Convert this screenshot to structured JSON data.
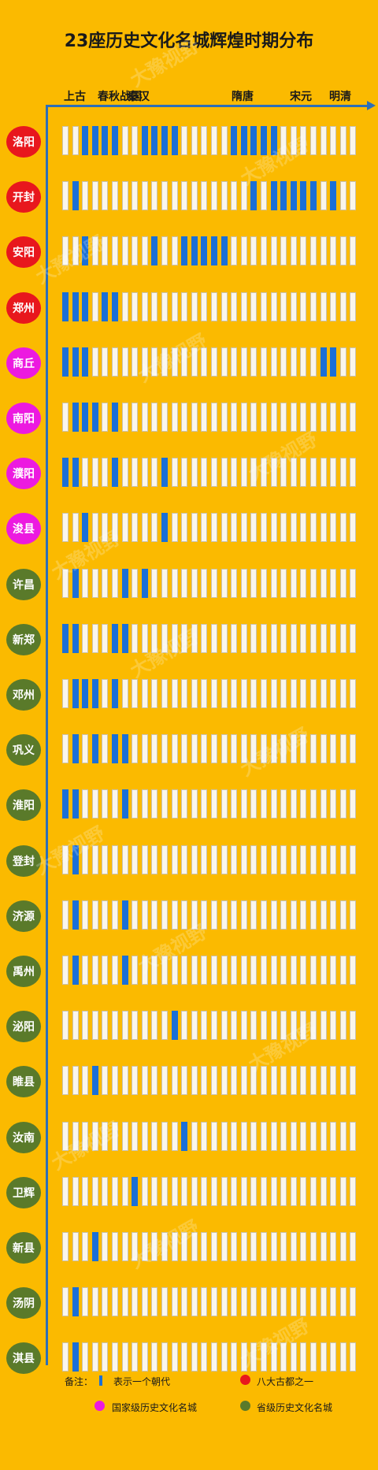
{
  "title": "23座历史文化名城辉煌时期分布",
  "eras": [
    "上古",
    "春秋战国",
    "秦汉",
    "隋唐",
    "宋元",
    "明清"
  ],
  "colors": {
    "background": "#FBBA00",
    "active_cell": "#1B6FD6",
    "empty_cell": "#FAF6EC",
    "axis": "#2d6fb8",
    "ancient_capital": "#E8171D",
    "national_city": "#EC1AE0",
    "provincial_city": "#5A7A2A"
  },
  "legend": {
    "note": "备注：",
    "dynasty": "表示一个朝代",
    "ancient_capital": "八大古都之一",
    "national_city": "国家级历史文化名城",
    "provincial_city": "省级历史文化名城"
  },
  "watermark": "大豫视野",
  "chart_data": {
    "type": "table",
    "title": "23座历史文化名城辉煌时期分布",
    "x_label": "",
    "x_eras": [
      "上古",
      "春秋战国",
      "秦汉",
      "隋唐",
      "宋元",
      "明清"
    ],
    "columns_per_row": 30,
    "cell_meaning": "表示一个朝代",
    "rows": [
      {
        "city": "洛阳",
        "category": "ancient_capital",
        "active": [
          2,
          3,
          4,
          5,
          8,
          9,
          10,
          11,
          17,
          18,
          19,
          20,
          21
        ]
      },
      {
        "city": "开封",
        "category": "ancient_capital",
        "active": [
          1,
          19,
          21,
          22,
          23,
          24,
          25,
          27
        ]
      },
      {
        "city": "安阳",
        "category": "ancient_capital",
        "active": [
          2,
          9,
          12,
          13,
          14,
          15,
          16
        ]
      },
      {
        "city": "郑州",
        "category": "ancient_capital",
        "active": [
          0,
          1,
          2,
          4,
          5
        ]
      },
      {
        "city": "商丘",
        "category": "national_city",
        "active": [
          0,
          1,
          2,
          26,
          27
        ]
      },
      {
        "city": "南阳",
        "category": "national_city",
        "active": [
          1,
          2,
          3,
          5
        ]
      },
      {
        "city": "濮阳",
        "category": "national_city",
        "active": [
          0,
          1,
          5,
          10
        ]
      },
      {
        "city": "浚县",
        "category": "national_city",
        "active": [
          2,
          10
        ]
      },
      {
        "city": "许昌",
        "category": "provincial_city",
        "active": [
          1,
          6,
          8
        ]
      },
      {
        "city": "新郑",
        "category": "provincial_city",
        "active": [
          0,
          1,
          5,
          6
        ]
      },
      {
        "city": "邓州",
        "category": "provincial_city",
        "active": [
          1,
          2,
          3,
          5
        ]
      },
      {
        "city": "巩义",
        "category": "provincial_city",
        "active": [
          1,
          3,
          5,
          6
        ]
      },
      {
        "city": "淮阳",
        "category": "provincial_city",
        "active": [
          0,
          1,
          6
        ]
      },
      {
        "city": "登封",
        "category": "provincial_city",
        "active": [
          1
        ]
      },
      {
        "city": "济源",
        "category": "provincial_city",
        "active": [
          1,
          6
        ]
      },
      {
        "city": "禹州",
        "category": "provincial_city",
        "active": [
          1,
          6
        ]
      },
      {
        "city": "泌阳",
        "category": "provincial_city",
        "active": [
          11
        ]
      },
      {
        "city": "睢县",
        "category": "provincial_city",
        "active": [
          3
        ]
      },
      {
        "city": "汝南",
        "category": "provincial_city",
        "active": [
          12
        ]
      },
      {
        "city": "卫辉",
        "category": "provincial_city",
        "active": [
          7
        ]
      },
      {
        "city": "新县",
        "category": "provincial_city",
        "active": [
          3
        ]
      },
      {
        "city": "汤阴",
        "category": "provincial_city",
        "active": [
          1
        ]
      },
      {
        "city": "淇县",
        "category": "provincial_city",
        "active": [
          1
        ]
      }
    ]
  }
}
